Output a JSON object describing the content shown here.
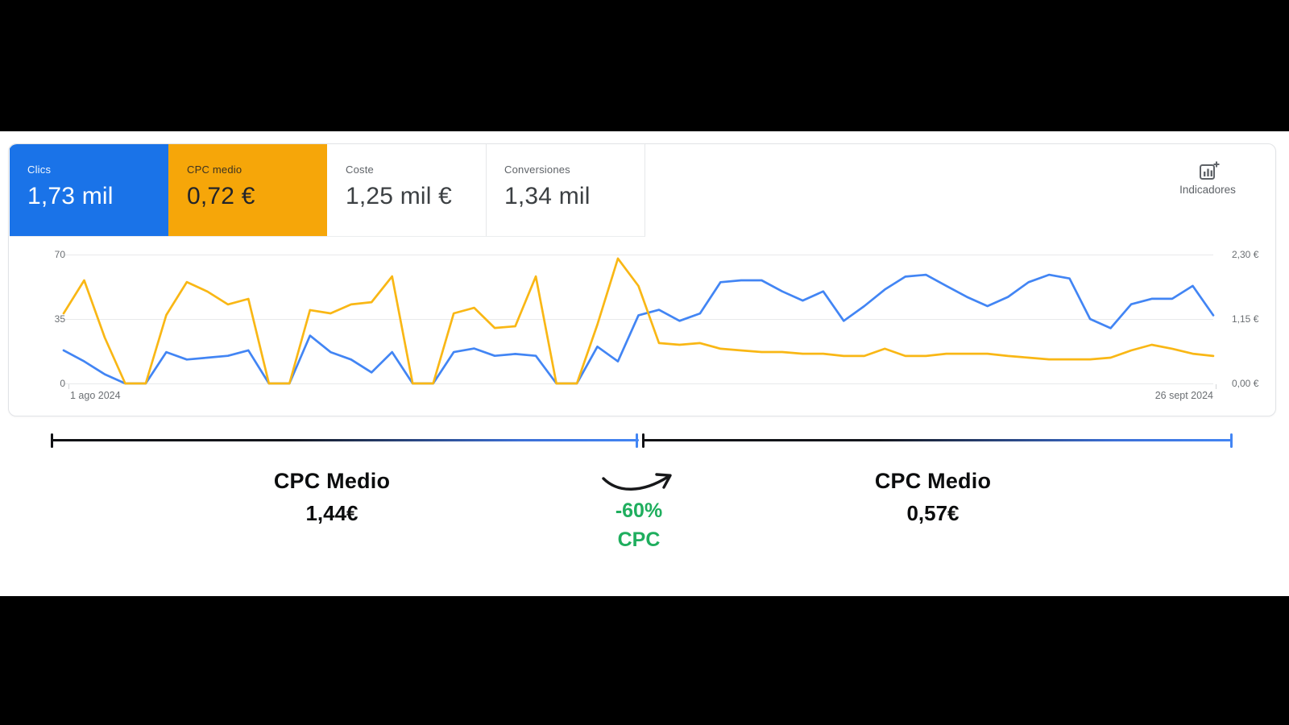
{
  "cards": [
    {
      "id": "clics",
      "label": "Clics",
      "value": "1,73 mil",
      "bg": "#1a73e8",
      "theme": "blue"
    },
    {
      "id": "cpc-medio",
      "label": "CPC medio",
      "value": "0,72 €",
      "bg": "#f6a609",
      "theme": "orange"
    },
    {
      "id": "coste",
      "label": "Coste",
      "value": "1,25 mil €",
      "bg": "#ffffff",
      "theme": "white"
    },
    {
      "id": "conversiones",
      "label": "Conversiones",
      "value": "1,34 mil",
      "bg": "#ffffff",
      "theme": "white"
    }
  ],
  "toolbar": {
    "indicators_label": "Indicadores"
  },
  "chart_data": {
    "type": "line",
    "x_start_label": "1 ago 2024",
    "x_end_label": "26 sept 2024",
    "left_axis": {
      "ticks": [
        70,
        35,
        0
      ],
      "max": 70,
      "series": "Clics"
    },
    "right_axis": {
      "ticks": [
        "2,30 €",
        "1,15 €",
        "0,00 €"
      ],
      "max": 2.3,
      "series": "CPC medio"
    },
    "grid": true,
    "series": [
      {
        "id": "clics",
        "name": "Clics",
        "axis": "left",
        "color": "#4285f4",
        "values": [
          18,
          12,
          5,
          0,
          0,
          17,
          13,
          14,
          15,
          18,
          0,
          0,
          26,
          17,
          13,
          6,
          17,
          0,
          0,
          17,
          19,
          15,
          16,
          15,
          0,
          0,
          20,
          12,
          37,
          40,
          34,
          38,
          55,
          56,
          56,
          50,
          45,
          50,
          34,
          42,
          51,
          58,
          59,
          53,
          47,
          42,
          47,
          55,
          59,
          57,
          35,
          30,
          43,
          46,
          46,
          53,
          37
        ]
      },
      {
        "id": "cpc-medio",
        "name": "CPC medio",
        "axis": "right",
        "color": "#f9b715",
        "values": [
          1.25,
          1.84,
          0.82,
          0,
          0,
          1.22,
          1.81,
          1.64,
          1.41,
          1.51,
          0,
          0,
          1.31,
          1.25,
          1.41,
          1.45,
          1.91,
          0,
          0,
          1.25,
          1.35,
          0.99,
          1.02,
          1.91,
          0,
          0,
          1.05,
          2.23,
          1.74,
          0.72,
          0.69,
          0.72,
          0.62,
          0.59,
          0.56,
          0.56,
          0.53,
          0.53,
          0.49,
          0.49,
          0.62,
          0.49,
          0.49,
          0.53,
          0.53,
          0.53,
          0.49,
          0.46,
          0.43,
          0.43,
          0.43,
          0.46,
          0.59,
          0.69,
          0.62,
          0.53,
          0.49
        ]
      }
    ]
  },
  "annotation": {
    "left": {
      "title": "CPC Medio",
      "value": "1,44€"
    },
    "right": {
      "title": "CPC Medio",
      "value": "0,57€"
    },
    "change": {
      "line1": "-60%",
      "line2": "CPC",
      "color": "#1fae5e"
    }
  }
}
